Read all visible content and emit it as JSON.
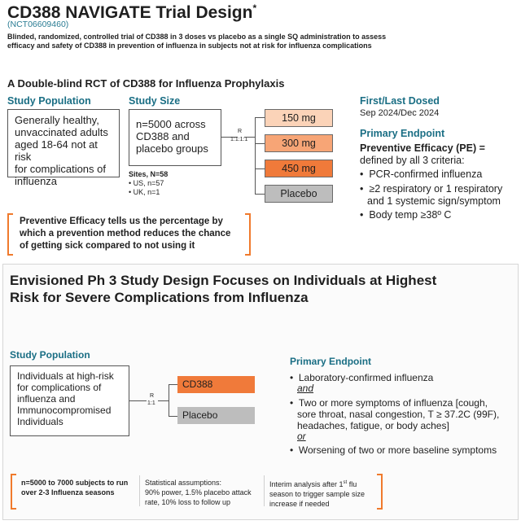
{
  "top": {
    "title": "CD388 NAVIGATE Trial Design",
    "title_mark": "*",
    "nct": "(NCT06609460)",
    "subtitle_line1": "Blinded, randomized, controlled trial of CD388 in 3 doses vs placebo as a single SQ administration to assess",
    "subtitle_line2": "efficacy and safety of CD388 in prevention of influenza in subjects not at risk for influenza complications",
    "section_heading": "A Double-blind RCT of CD388 for Influenza Prophylaxis",
    "study_population_heading": "Study Population",
    "study_population_text": [
      "Generally healthy,",
      "unvaccinated adults",
      "aged 18-64 not at risk",
      "for complications of",
      "influenza"
    ],
    "study_size_heading": "Study Size",
    "study_size_text": [
      "n=5000 across",
      "CD388 and",
      "placebo groups"
    ],
    "sites_heading": "Sites, N=58",
    "sites": [
      "• US, n=57",
      "• UK, n=1"
    ],
    "randomization_label": "R",
    "randomization_ratio": "1:1:1:1",
    "arms": [
      {
        "label": "150 mg",
        "color": "#fbd3b8"
      },
      {
        "label": "300 mg",
        "color": "#f7a576"
      },
      {
        "label": "450 mg",
        "color": "#f07a3a"
      },
      {
        "label": "Placebo",
        "color": "#bdbdbd"
      }
    ],
    "dosed_heading": "First/Last Dosed",
    "dosed_text": "Sep 2024/Dec 2024",
    "endpoint_heading": "Primary Endpoint",
    "pe_line1": "Preventive Efficacy (PE) =",
    "pe_line2": "defined by all 3 criteria:",
    "criteria": [
      [
        "PCR-confirmed influenza"
      ],
      [
        "≥2 respiratory or 1 respiratory",
        "and 1 systemic sign/symptom"
      ],
      [
        "Body temp ≥38º C"
      ]
    ],
    "callout": [
      "Preventive Efficacy tells us the percentage by",
      "which a prevention method reduces the chance",
      "of getting sick compared to not using it"
    ]
  },
  "bottom": {
    "title_line1": "Envisioned Ph 3 Study Design Focuses on Individuals at Highest",
    "title_line2": "Risk for Severe Complications from Influenza",
    "study_population_heading": "Study Population",
    "study_population_text": [
      "Individuals at high-risk",
      "for complications of",
      "influenza and",
      "Immunocompromised",
      "Individuals"
    ],
    "randomization_label": "R",
    "randomization_ratio": "1:1",
    "arms": [
      {
        "label": "CD388",
        "color": "#f07a3a"
      },
      {
        "label": "Placebo",
        "color": "#bdbdbd"
      }
    ],
    "endpoint_heading": "Primary Endpoint",
    "endpoint_item1": "Laboratory-confirmed influenza",
    "and_text": "and",
    "endpoint_item2": [
      "Two or more symptoms of influenza [cough,",
      "sore throat, nasal congestion, T ≥ 37.2C (99F),",
      "headaches, fatigue, or body aches]"
    ],
    "or_text": "or",
    "endpoint_item3": "Worsening of two or more baseline symptoms",
    "footer_col1": [
      "n=5000 to 7000 subjects to run",
      "over 2-3 Influenza seasons"
    ],
    "footer_col2": [
      "Statistical assumptions:",
      "90% power, 1.5% placebo attack",
      "rate, 10% loss to follow up"
    ],
    "footer_col3_a": "Interim analysis after 1",
    "footer_col3_sup": "st",
    "footer_col3_b": " flu",
    "footer_col3_rest": [
      "season to trigger sample size",
      "increase if needed"
    ]
  }
}
